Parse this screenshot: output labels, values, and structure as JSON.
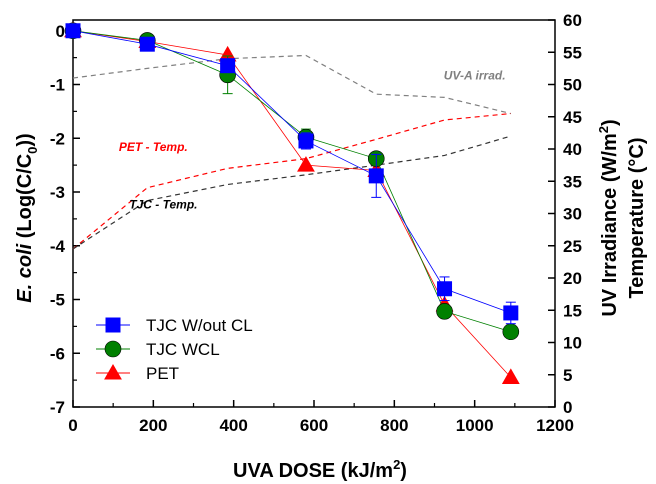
{
  "chart_data": {
    "type": "line",
    "x_axis": {
      "label": "UVA DOSE (kJ/m²)",
      "label_main": "UVA DOSE (kJ/m",
      "label_sup": "2",
      "label_end": ")",
      "lim": [
        0,
        1200
      ],
      "ticks": [
        0,
        200,
        400,
        600,
        800,
        1000,
        1200
      ],
      "tick_labels": [
        "0",
        "200",
        "400",
        "600",
        "800",
        "1000",
        "1200"
      ]
    },
    "y_axis_left": {
      "label": "E. coli (Log(C/C0))",
      "label_italic": "E. coli",
      "label_main": " (Log(C/C",
      "label_sub": "0",
      "label_end": "))",
      "lim": [
        -7,
        0.2
      ],
      "ticks": [
        0,
        -1,
        -2,
        -3,
        -4,
        -5,
        -6,
        -7
      ],
      "tick_labels": [
        "0",
        "-1",
        "-2",
        "-3",
        "-4",
        "-5",
        "-6",
        "-7"
      ]
    },
    "y_axis_right": {
      "label_line1": "UV Irradiance (W/m²)",
      "label_line1_main": "UV Irradiance (W/m",
      "label_line1_sup": "2",
      "label_line1_end": ")",
      "label_line2": "Temperature (°C)",
      "lim": [
        0,
        60
      ],
      "ticks": [
        0,
        5,
        10,
        15,
        20,
        25,
        30,
        35,
        40,
        45,
        50,
        55,
        60
      ],
      "tick_labels": [
        "0",
        "5",
        "10",
        "15",
        "20",
        "25",
        "30",
        "35",
        "40",
        "45",
        "50",
        "55",
        "60"
      ]
    },
    "series": [
      {
        "name": "TJC W/out CL",
        "axis": "left",
        "color": "#0000ff",
        "marker": "square",
        "x": [
          0,
          185,
          385,
          580,
          755,
          925,
          1090
        ],
        "y": [
          0,
          -0.25,
          -0.65,
          -2.05,
          -2.7,
          -4.8,
          -5.25
        ],
        "err": [
          0,
          0.08,
          0.12,
          0.15,
          0.4,
          0.22,
          0.2
        ]
      },
      {
        "name": "TJC WCL",
        "axis": "left",
        "color": "#008000",
        "marker": "circle",
        "x": [
          0,
          185,
          385,
          580,
          755,
          925,
          1090
        ],
        "y": [
          0,
          -0.18,
          -0.82,
          -1.98,
          -2.38,
          -5.22,
          -5.6
        ],
        "err": [
          0,
          0.05,
          0.35,
          0.15,
          0.05,
          0.1,
          0.05
        ]
      },
      {
        "name": "PET",
        "axis": "left",
        "color": "#ff0000",
        "marker": "triangle",
        "x": [
          0,
          185,
          385,
          580,
          755,
          925,
          1090
        ],
        "y": [
          0,
          -0.2,
          -0.45,
          -2.5,
          -2.6,
          -5.1,
          -6.45
        ],
        "err": [
          0,
          0,
          0,
          0,
          0,
          0,
          0
        ]
      },
      {
        "name": "UV-A irrad.",
        "axis": "right",
        "color": "#808080",
        "style": "dashed",
        "x": [
          0,
          185,
          385,
          580,
          755,
          925,
          1090
        ],
        "y": [
          51,
          52.5,
          54,
          54.5,
          48.5,
          48,
          45.5
        ]
      },
      {
        "name": "PET - Temp.",
        "axis": "right",
        "color": "#ff0000",
        "style": "dashed",
        "x": [
          0,
          185,
          385,
          580,
          755,
          925,
          1090
        ],
        "y": [
          24.5,
          34,
          37,
          38.5,
          41.5,
          44.5,
          45.5
        ]
      },
      {
        "name": "TJC - Temp.",
        "axis": "right",
        "color": "#333333",
        "style": "dashed",
        "x": [
          0,
          185,
          385,
          580,
          755,
          925,
          1090
        ],
        "y": [
          24.5,
          32,
          34.5,
          36,
          37.5,
          39,
          42
        ]
      }
    ],
    "annotations": [
      {
        "text": "UV-A irrad.",
        "x": 1000,
        "y_right": 50.8,
        "color": "#808080"
      },
      {
        "text": "PET - Temp.",
        "x": 200,
        "y_right": 39.7,
        "color": "#ff0000"
      },
      {
        "text": "TJC - Temp.",
        "x": 225,
        "y_right": 30.8,
        "color": "#000000"
      }
    ],
    "legend": {
      "position": "bottom-left",
      "entries": [
        "TJC W/out CL",
        "TJC WCL",
        "PET"
      ]
    },
    "grid": false
  }
}
